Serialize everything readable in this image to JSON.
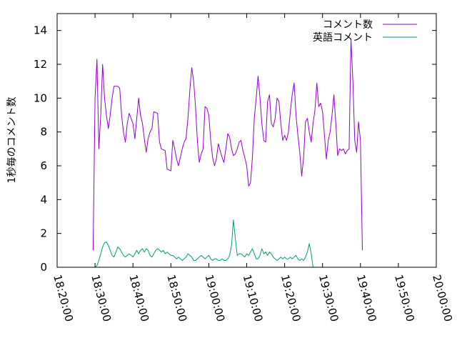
{
  "chart_data": {
    "type": "line",
    "title": "",
    "xlabel": "",
    "ylabel": "1秒毎のコメント数",
    "ylim": [
      0,
      15
    ],
    "yticks": [
      0,
      2,
      4,
      6,
      8,
      10,
      12,
      14
    ],
    "xlim": [
      "18:20:00",
      "20:00:00"
    ],
    "xticks": [
      "18:20:00",
      "18:30:00",
      "18:40:00",
      "18:50:00",
      "19:00:00",
      "19:10:00",
      "19:20:00",
      "19:30:00",
      "19:40:00",
      "19:50:00",
      "20:00:00"
    ],
    "grid": false,
    "legend_position": "top-right",
    "series": [
      {
        "name": "コメント数",
        "color": "#9400d3",
        "points": [
          [
            "18:29:30",
            1.0
          ],
          [
            "18:30:00",
            10.0
          ],
          [
            "18:30:30",
            12.3
          ],
          [
            "18:31:00",
            7.0
          ],
          [
            "18:31:30",
            9.0
          ],
          [
            "18:32:00",
            12.0
          ],
          [
            "18:32:30",
            10.0
          ],
          [
            "18:33:00",
            9.0
          ],
          [
            "18:33:30",
            8.2
          ],
          [
            "18:34:00",
            9.0
          ],
          [
            "18:34:30",
            10.0
          ],
          [
            "18:35:00",
            10.7
          ],
          [
            "18:36:00",
            10.7
          ],
          [
            "18:36:30",
            10.6
          ],
          [
            "18:37:00",
            9.0
          ],
          [
            "18:37:30",
            8.0
          ],
          [
            "18:38:00",
            7.4
          ],
          [
            "18:38:30",
            8.5
          ],
          [
            "18:39:00",
            9.1
          ],
          [
            "18:40:00",
            8.5
          ],
          [
            "18:40:30",
            7.6
          ],
          [
            "18:41:00",
            8.8
          ],
          [
            "18:41:30",
            10.0
          ],
          [
            "18:42:00",
            9.0
          ],
          [
            "18:42:30",
            8.5
          ],
          [
            "18:43:00",
            7.6
          ],
          [
            "18:43:30",
            6.8
          ],
          [
            "18:44:00",
            7.6
          ],
          [
            "18:44:30",
            8.0
          ],
          [
            "18:45:00",
            8.2
          ],
          [
            "18:45:30",
            9.2
          ],
          [
            "18:46:30",
            9.1
          ],
          [
            "18:47:00",
            7.4
          ],
          [
            "18:47:30",
            7.0
          ],
          [
            "18:48:30",
            6.9
          ],
          [
            "18:49:00",
            5.8
          ],
          [
            "18:50:00",
            5.7
          ],
          [
            "18:50:30",
            7.5
          ],
          [
            "18:51:00",
            7.0
          ],
          [
            "18:51:30",
            6.4
          ],
          [
            "18:52:00",
            6.0
          ],
          [
            "18:52:30",
            6.5
          ],
          [
            "18:53:00",
            7.0
          ],
          [
            "18:53:30",
            7.4
          ],
          [
            "18:54:00",
            7.6
          ],
          [
            "18:54:30",
            8.8
          ],
          [
            "18:55:00",
            10.5
          ],
          [
            "18:55:30",
            11.8
          ],
          [
            "18:56:00",
            11.0
          ],
          [
            "18:56:30",
            9.5
          ],
          [
            "18:57:00",
            7.4
          ],
          [
            "18:57:30",
            6.2
          ],
          [
            "18:58:00",
            6.7
          ],
          [
            "18:58:30",
            7.0
          ],
          [
            "18:59:00",
            9.5
          ],
          [
            "18:59:30",
            9.4
          ],
          [
            "19:00:00",
            9.0
          ],
          [
            "19:00:30",
            7.5
          ],
          [
            "19:01:00",
            6.5
          ],
          [
            "19:01:30",
            6.0
          ],
          [
            "19:02:00",
            6.4
          ],
          [
            "19:02:30",
            7.3
          ],
          [
            "19:03:00",
            6.9
          ],
          [
            "19:03:30",
            6.5
          ],
          [
            "19:04:00",
            6.2
          ],
          [
            "19:04:30",
            7.0
          ],
          [
            "19:05:00",
            7.9
          ],
          [
            "19:05:30",
            7.7
          ],
          [
            "19:06:00",
            7.0
          ],
          [
            "19:06:30",
            6.6
          ],
          [
            "19:07:00",
            6.7
          ],
          [
            "19:07:30",
            7.0
          ],
          [
            "19:08:00",
            7.4
          ],
          [
            "19:08:30",
            7.5
          ],
          [
            "19:09:00",
            6.9
          ],
          [
            "19:09:30",
            6.5
          ],
          [
            "19:10:00",
            6.0
          ],
          [
            "19:10:30",
            4.8
          ],
          [
            "19:11:00",
            5.0
          ],
          [
            "19:11:30",
            6.5
          ],
          [
            "19:12:00",
            8.8
          ],
          [
            "19:12:30",
            10.0
          ],
          [
            "19:13:00",
            11.3
          ],
          [
            "19:13:30",
            10.0
          ],
          [
            "19:14:00",
            8.5
          ],
          [
            "19:14:30",
            7.5
          ],
          [
            "19:15:00",
            7.4
          ],
          [
            "19:15:30",
            9.8
          ],
          [
            "19:16:00",
            10.2
          ],
          [
            "19:16:30",
            8.5
          ],
          [
            "19:17:00",
            8.3
          ],
          [
            "19:17:30",
            8.8
          ],
          [
            "19:18:00",
            10.0
          ],
          [
            "19:18:30",
            9.8
          ],
          [
            "19:19:00",
            8.5
          ],
          [
            "19:19:30",
            7.5
          ],
          [
            "19:20:00",
            7.8
          ],
          [
            "19:20:30",
            7.5
          ],
          [
            "19:21:00",
            8.0
          ],
          [
            "19:21:30",
            9.2
          ],
          [
            "19:22:00",
            10.2
          ],
          [
            "19:22:30",
            10.9
          ],
          [
            "19:23:00",
            9.0
          ],
          [
            "19:23:30",
            7.8
          ],
          [
            "19:24:00",
            6.8
          ],
          [
            "19:24:30",
            5.4
          ],
          [
            "19:25:00",
            6.5
          ],
          [
            "19:25:30",
            8.6
          ],
          [
            "19:26:00",
            8.8
          ],
          [
            "19:26:30",
            8.0
          ],
          [
            "19:27:00",
            7.4
          ],
          [
            "19:27:30",
            8.5
          ],
          [
            "19:28:00",
            9.3
          ],
          [
            "19:28:30",
            10.9
          ],
          [
            "19:29:00",
            9.5
          ],
          [
            "19:29:30",
            9.7
          ],
          [
            "19:30:00",
            9.2
          ],
          [
            "19:30:30",
            7.8
          ],
          [
            "19:31:00",
            6.4
          ],
          [
            "19:31:30",
            7.5
          ],
          [
            "19:32:00",
            8.0
          ],
          [
            "19:32:30",
            9.0
          ],
          [
            "19:33:00",
            10.2
          ],
          [
            "19:33:30",
            8.5
          ],
          [
            "19:34:00",
            6.6
          ],
          [
            "19:34:30",
            7.0
          ],
          [
            "19:35:00",
            6.9
          ],
          [
            "19:35:30",
            7.0
          ],
          [
            "19:36:00",
            6.7
          ],
          [
            "19:36:30",
            6.9
          ],
          [
            "19:37:00",
            7.0
          ],
          [
            "19:37:30",
            13.5
          ],
          [
            "19:38:00",
            11.0
          ],
          [
            "19:38:30",
            7.5
          ],
          [
            "19:39:00",
            6.8
          ],
          [
            "19:39:30",
            8.6
          ],
          [
            "19:40:00",
            7.5
          ],
          [
            "19:40:30",
            1.0
          ]
        ]
      },
      {
        "name": "英語コメント",
        "color": "#009e73",
        "points": [
          [
            "18:30:00",
            0.0
          ],
          [
            "18:30:30",
            0.1
          ],
          [
            "18:31:00",
            0.4
          ],
          [
            "18:31:30",
            0.8
          ],
          [
            "18:32:00",
            1.2
          ],
          [
            "18:32:30",
            1.45
          ],
          [
            "18:33:00",
            1.5
          ],
          [
            "18:33:30",
            1.3
          ],
          [
            "18:34:00",
            1.0
          ],
          [
            "18:34:30",
            0.7
          ],
          [
            "18:35:00",
            0.6
          ],
          [
            "18:35:30",
            0.9
          ],
          [
            "18:36:00",
            1.2
          ],
          [
            "18:36:30",
            1.1
          ],
          [
            "18:37:00",
            0.9
          ],
          [
            "18:37:30",
            0.7
          ],
          [
            "18:38:00",
            0.6
          ],
          [
            "18:38:30",
            0.7
          ],
          [
            "18:39:00",
            0.8
          ],
          [
            "18:39:30",
            0.7
          ],
          [
            "18:40:00",
            0.6
          ],
          [
            "18:40:30",
            0.8
          ],
          [
            "18:41:00",
            1.0
          ],
          [
            "18:41:30",
            0.8
          ],
          [
            "18:42:00",
            1.0
          ],
          [
            "18:42:30",
            1.1
          ],
          [
            "18:43:00",
            0.9
          ],
          [
            "18:43:30",
            1.1
          ],
          [
            "18:44:00",
            1.0
          ],
          [
            "18:44:30",
            0.7
          ],
          [
            "18:45:00",
            0.6
          ],
          [
            "18:45:30",
            0.8
          ],
          [
            "18:46:00",
            1.0
          ],
          [
            "18:46:30",
            1.1
          ],
          [
            "18:47:00",
            1.0
          ],
          [
            "18:47:30",
            0.9
          ],
          [
            "18:48:00",
            1.0
          ],
          [
            "18:48:30",
            0.8
          ],
          [
            "18:49:00",
            0.9
          ],
          [
            "18:49:30",
            0.8
          ],
          [
            "18:50:00",
            0.7
          ],
          [
            "18:50:30",
            0.7
          ],
          [
            "18:51:00",
            0.6
          ],
          [
            "18:51:30",
            0.5
          ],
          [
            "18:52:00",
            0.6
          ],
          [
            "18:52:30",
            0.5
          ],
          [
            "18:53:00",
            0.4
          ],
          [
            "18:53:30",
            0.5
          ],
          [
            "18:54:00",
            0.6
          ],
          [
            "18:54:30",
            0.8
          ],
          [
            "18:55:00",
            0.7
          ],
          [
            "18:55:30",
            0.6
          ],
          [
            "18:56:00",
            0.4
          ],
          [
            "18:56:30",
            0.4
          ],
          [
            "18:57:00",
            0.5
          ],
          [
            "18:57:30",
            0.6
          ],
          [
            "18:58:00",
            0.7
          ],
          [
            "18:58:30",
            0.6
          ],
          [
            "18:59:00",
            0.5
          ],
          [
            "18:59:30",
            0.6
          ],
          [
            "19:00:00",
            0.7
          ],
          [
            "19:00:30",
            0.5
          ],
          [
            "19:01:00",
            0.4
          ],
          [
            "19:01:30",
            0.5
          ],
          [
            "19:02:00",
            0.5
          ],
          [
            "19:02:30",
            0.4
          ],
          [
            "19:03:00",
            0.4
          ],
          [
            "19:03:30",
            0.5
          ],
          [
            "19:04:00",
            0.4
          ],
          [
            "19:04:30",
            0.4
          ],
          [
            "19:05:00",
            0.5
          ],
          [
            "19:05:30",
            0.7
          ],
          [
            "19:06:00",
            1.3
          ],
          [
            "19:06:30",
            2.8
          ],
          [
            "19:07:00",
            1.7
          ],
          [
            "19:07:30",
            0.7
          ],
          [
            "19:08:00",
            0.8
          ],
          [
            "19:08:30",
            0.8
          ],
          [
            "19:09:00",
            0.7
          ],
          [
            "19:09:30",
            0.6
          ],
          [
            "19:10:00",
            0.8
          ],
          [
            "19:10:30",
            0.7
          ],
          [
            "19:11:00",
            0.9
          ],
          [
            "19:11:30",
            1.1
          ],
          [
            "19:12:00",
            0.8
          ],
          [
            "19:12:30",
            0.5
          ],
          [
            "19:13:00",
            0.5
          ],
          [
            "19:13:30",
            0.7
          ],
          [
            "19:14:00",
            1.1
          ],
          [
            "19:14:30",
            0.8
          ],
          [
            "19:15:00",
            0.9
          ],
          [
            "19:15:30",
            0.7
          ],
          [
            "19:16:00",
            0.9
          ],
          [
            "19:16:30",
            0.8
          ],
          [
            "19:17:00",
            0.6
          ],
          [
            "19:17:30",
            0.5
          ],
          [
            "19:18:00",
            0.4
          ],
          [
            "19:18:30",
            0.5
          ],
          [
            "19:19:00",
            0.6
          ],
          [
            "19:19:30",
            0.5
          ],
          [
            "19:20:00",
            0.6
          ],
          [
            "19:20:30",
            0.5
          ],
          [
            "19:21:00",
            0.5
          ],
          [
            "19:21:30",
            0.6
          ],
          [
            "19:22:00",
            0.5
          ],
          [
            "19:22:30",
            0.6
          ],
          [
            "19:23:00",
            0.7
          ],
          [
            "19:23:30",
            0.5
          ],
          [
            "19:24:00",
            0.4
          ],
          [
            "19:24:30",
            0.5
          ],
          [
            "19:25:00",
            0.4
          ],
          [
            "19:25:30",
            0.6
          ],
          [
            "19:26:00",
            0.9
          ],
          [
            "19:26:30",
            1.4
          ],
          [
            "19:27:00",
            0.8
          ],
          [
            "19:27:30",
            0.0
          ]
        ]
      }
    ]
  }
}
